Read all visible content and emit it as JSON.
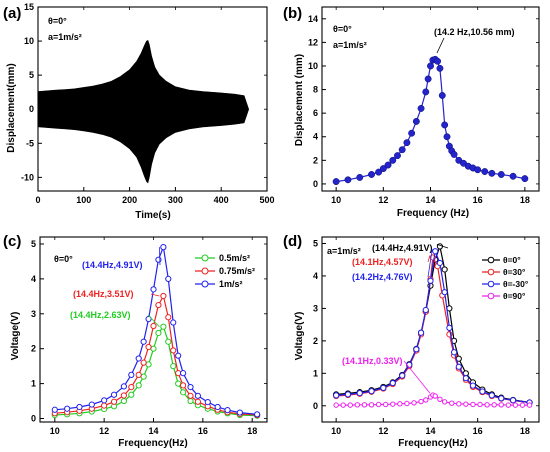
{
  "panels": [
    {
      "id": "a",
      "panel_label": "(a)",
      "cond_lines": [
        "θ=0°",
        "a=1m/s²"
      ],
      "xlabel": "Time(s)",
      "ylabel": "Displacement(mm)",
      "annotation": ""
    },
    {
      "id": "b",
      "panel_label": "(b)",
      "cond_lines": [
        "θ=0°",
        "a=1m/s²"
      ],
      "xlabel": "Frequency (Hz)",
      "ylabel": "Displacement (mm)",
      "annotation": "(14.2 Hz,10.56 mm)"
    },
    {
      "id": "c",
      "panel_label": "(c)",
      "cond_lines": [
        "θ=0°"
      ],
      "xlabel": "Frequency(Hz)",
      "ylabel": "Voltage(V)",
      "annotation": ""
    },
    {
      "id": "d",
      "panel_label": "(d)",
      "cond_lines": [
        "a=1m/s²"
      ],
      "xlabel": "Frequency(Hz)",
      "ylabel": "Voltage(V)",
      "annotation": ""
    }
  ],
  "chart_data": [
    {
      "type": "area",
      "xlim": [
        0,
        500
      ],
      "ylim": [
        -12,
        15
      ],
      "xticks": [
        0,
        100,
        200,
        300,
        400,
        500
      ],
      "yticks": [
        -10,
        -5,
        0,
        5,
        10,
        15
      ],
      "envelope": {
        "x": [
          0,
          20,
          40,
          60,
          80,
          100,
          120,
          140,
          160,
          180,
          200,
          215,
          225,
          232,
          237,
          240,
          243,
          248,
          255,
          265,
          280,
          300,
          330,
          360,
          400,
          430,
          450,
          460
        ],
        "upper": [
          2.6,
          2.7,
          2.8,
          2.9,
          3.0,
          3.2,
          3.4,
          3.7,
          4.1,
          4.8,
          5.8,
          7.0,
          8.2,
          9.3,
          10.0,
          10.1,
          9.5,
          7.8,
          6.2,
          5.0,
          4.1,
          3.3,
          2.8,
          2.6,
          2.4,
          2.2,
          2.0,
          0
        ],
        "lower": [
          -2.6,
          -2.7,
          -2.8,
          -2.9,
          -3.0,
          -3.2,
          -3.4,
          -3.7,
          -4.1,
          -4.8,
          -5.8,
          -7.0,
          -8.5,
          -9.8,
          -10.6,
          -10.8,
          -10.0,
          -8.1,
          -6.4,
          -5.1,
          -4.2,
          -3.4,
          -2.9,
          -2.6,
          -2.4,
          -2.2,
          -2.0,
          0
        ]
      },
      "color": "#000000"
    },
    {
      "type": "line",
      "xlim": [
        9.4,
        18.6
      ],
      "ylim": [
        -0.6,
        15
      ],
      "xticks": [
        10,
        12,
        14,
        16,
        18
      ],
      "yticks": [
        0,
        2,
        4,
        6,
        8,
        10,
        12,
        14
      ],
      "series": [
        {
          "color": "#2424cc",
          "x": [
            10.0,
            10.5,
            11.0,
            11.5,
            11.8,
            12.0,
            12.2,
            12.4,
            12.6,
            12.8,
            13.0,
            13.2,
            13.4,
            13.6,
            13.8,
            13.9,
            14.0,
            14.1,
            14.2,
            14.3,
            14.4,
            14.5,
            14.6,
            14.7,
            14.8,
            14.9,
            15.0,
            15.2,
            15.4,
            15.6,
            15.8,
            16.0,
            16.3,
            16.6,
            17.0,
            17.5,
            18.0
          ],
          "values": [
            0.2,
            0.35,
            0.55,
            0.8,
            1.0,
            1.3,
            1.6,
            2.0,
            2.4,
            2.9,
            3.5,
            4.3,
            5.3,
            6.4,
            7.8,
            8.9,
            10.0,
            10.5,
            10.56,
            10.4,
            9.8,
            7.5,
            5.0,
            4.0,
            3.2,
            2.8,
            2.5,
            2.0,
            1.75,
            1.5,
            1.35,
            1.2,
            1.05,
            0.9,
            0.8,
            0.65,
            0.45
          ]
        }
      ]
    },
    {
      "type": "line",
      "xlim": [
        9.4,
        18.6
      ],
      "ylim": [
        -0.1,
        5.2
      ],
      "xticks": [
        10,
        12,
        14,
        16,
        18
      ],
      "yticks": [
        0,
        1,
        2,
        3,
        4,
        5
      ],
      "legend": "top-right",
      "series": [
        {
          "name": "0.5m/s²",
          "color": "#22cc22",
          "label": "(14.4Hz,2.63V)",
          "x": [
            10,
            10.5,
            11,
            11.5,
            12,
            12.4,
            12.8,
            13.1,
            13.4,
            13.6,
            13.8,
            14.0,
            14.2,
            14.4,
            14.6,
            14.8,
            15.0,
            15.2,
            15.5,
            15.8,
            16.2,
            16.6,
            17.0,
            17.5,
            18.2
          ],
          "values": [
            0.1,
            0.12,
            0.15,
            0.2,
            0.27,
            0.35,
            0.5,
            0.68,
            0.95,
            1.2,
            1.55,
            2.0,
            2.45,
            2.63,
            2.2,
            1.5,
            1.0,
            0.75,
            0.5,
            0.38,
            0.28,
            0.2,
            0.15,
            0.1,
            0.08
          ]
        },
        {
          "name": "0.75m/s²",
          "color": "#ee2222",
          "label": "(14.4Hz,3.51V)",
          "x": [
            10,
            10.5,
            11,
            11.5,
            12,
            12.4,
            12.8,
            13.1,
            13.4,
            13.6,
            13.8,
            14.0,
            14.2,
            14.4,
            14.6,
            14.8,
            15.0,
            15.2,
            15.5,
            15.8,
            16.2,
            16.6,
            17.0,
            17.5,
            18.2
          ],
          "values": [
            0.15,
            0.18,
            0.22,
            0.28,
            0.37,
            0.48,
            0.66,
            0.9,
            1.25,
            1.6,
            2.05,
            2.65,
            3.25,
            3.51,
            2.9,
            1.95,
            1.3,
            0.95,
            0.65,
            0.48,
            0.35,
            0.25,
            0.18,
            0.13,
            0.1
          ]
        },
        {
          "name": "1m/s²",
          "color": "#2222ee",
          "label": "(14.4Hz,4.91V)",
          "x": [
            10,
            10.5,
            11,
            11.5,
            12,
            12.4,
            12.8,
            13.1,
            13.4,
            13.6,
            13.8,
            14.0,
            14.2,
            14.4,
            14.6,
            14.8,
            15.0,
            15.2,
            15.5,
            15.8,
            16.2,
            16.6,
            17.0,
            17.5,
            18.2
          ],
          "values": [
            0.25,
            0.28,
            0.33,
            0.4,
            0.52,
            0.68,
            0.92,
            1.25,
            1.72,
            2.2,
            2.85,
            3.7,
            4.55,
            4.91,
            4.0,
            2.75,
            1.8,
            1.3,
            0.9,
            0.65,
            0.47,
            0.33,
            0.24,
            0.17,
            0.12
          ]
        }
      ]
    },
    {
      "type": "line",
      "xlim": [
        9.4,
        18.6
      ],
      "ylim": [
        -0.5,
        5.2
      ],
      "xticks": [
        10,
        12,
        14,
        16,
        18
      ],
      "yticks": [
        0,
        1,
        2,
        3,
        4,
        5
      ],
      "legend": "top-right",
      "series": [
        {
          "name": "θ=0°",
          "color": "#000000",
          "label": "(14.4Hz,4.91V)",
          "x": [
            10,
            10.5,
            11,
            11.5,
            12,
            12.4,
            12.8,
            13.1,
            13.4,
            13.6,
            13.8,
            14.0,
            14.2,
            14.4,
            14.6,
            14.8,
            15.0,
            15.2,
            15.5,
            15.8,
            16.2,
            16.6,
            17.0,
            17.5,
            18.2
          ],
          "values": [
            0.35,
            0.38,
            0.42,
            0.48,
            0.58,
            0.72,
            0.95,
            1.28,
            1.75,
            2.25,
            2.9,
            3.7,
            4.5,
            4.91,
            4.2,
            3.0,
            2.0,
            1.45,
            1.0,
            0.72,
            0.5,
            0.35,
            0.25,
            0.18,
            0.1
          ]
        },
        {
          "name": "θ=30°",
          "color": "#ee2222",
          "label": "(14.1Hz,4.57V)",
          "x": [
            10,
            10.5,
            11,
            11.5,
            12,
            12.4,
            12.8,
            13.1,
            13.4,
            13.6,
            13.8,
            14.0,
            14.1,
            14.3,
            14.5,
            14.8,
            15.0,
            15.2,
            15.5,
            15.8,
            16.2,
            16.6,
            17.0,
            17.5,
            18.2
          ],
          "values": [
            0.3,
            0.33,
            0.37,
            0.43,
            0.53,
            0.67,
            0.9,
            1.22,
            1.7,
            2.2,
            2.9,
            3.9,
            4.57,
            4.3,
            3.4,
            2.2,
            1.55,
            1.15,
            0.8,
            0.58,
            0.42,
            0.3,
            0.22,
            0.16,
            0.1
          ]
        },
        {
          "name": "θ=-30°",
          "color": "#2222ee",
          "label": "(14.2Hz,4.76V)",
          "x": [
            10,
            10.5,
            11,
            11.5,
            12,
            12.4,
            12.8,
            13.1,
            13.4,
            13.6,
            13.8,
            14.0,
            14.2,
            14.4,
            14.6,
            14.8,
            15.0,
            15.2,
            15.5,
            15.8,
            16.2,
            16.6,
            17.0,
            17.5,
            18.2
          ],
          "values": [
            0.32,
            0.35,
            0.39,
            0.45,
            0.55,
            0.7,
            0.93,
            1.26,
            1.74,
            2.25,
            2.95,
            3.85,
            4.76,
            4.4,
            3.5,
            2.4,
            1.65,
            1.2,
            0.85,
            0.62,
            0.44,
            0.32,
            0.23,
            0.17,
            0.1
          ]
        },
        {
          "name": "θ=90°",
          "color": "#ee22ee",
          "label": "(14.1Hz,0.33V)",
          "x": [
            10,
            10.3,
            10.6,
            10.9,
            11.2,
            11.5,
            11.8,
            12.1,
            12.4,
            12.7,
            13.0,
            13.3,
            13.6,
            13.8,
            14.0,
            14.1,
            14.2,
            14.4,
            14.6,
            14.9,
            15.2,
            15.5,
            15.8,
            16.1,
            16.4,
            16.7,
            17.0,
            17.3,
            17.6,
            17.9,
            18.2
          ],
          "values": [
            0.02,
            0.02,
            0.02,
            0.03,
            0.03,
            0.03,
            0.04,
            0.04,
            0.05,
            0.06,
            0.07,
            0.09,
            0.13,
            0.18,
            0.27,
            0.33,
            0.3,
            0.2,
            0.12,
            0.08,
            0.06,
            0.05,
            0.04,
            0.04,
            0.03,
            0.03,
            0.03,
            0.02,
            0.02,
            0.02,
            0.02
          ]
        }
      ]
    }
  ]
}
